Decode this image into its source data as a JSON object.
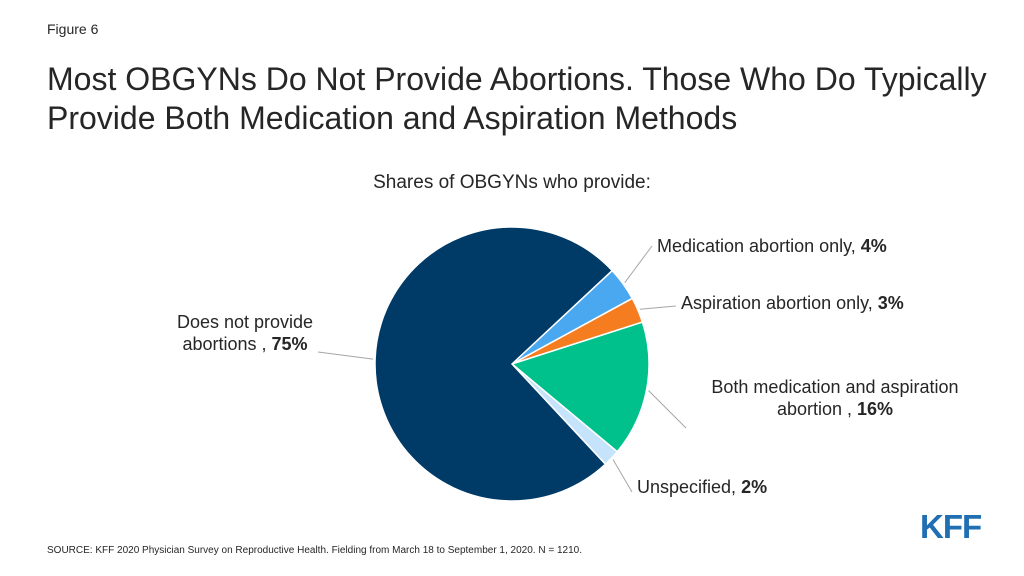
{
  "figure_label": "Figure 6",
  "title": "Most OBGYNs Do Not Provide Abortions. Those Who Do Typically Provide Both Medication and Aspiration Methods",
  "source": "SOURCE: KFF 2020 Physician Survey on Reproductive Health. Fielding from March 18 to September 1, 2020. N = 1210.",
  "logo_text": "KFF",
  "chart_data": {
    "type": "pie",
    "title": "Shares of OBGYNs who provide:",
    "slices": [
      {
        "label": "Medication abortion only, ",
        "value_label": "4%",
        "value": 4,
        "color": "#4aa8f0"
      },
      {
        "label": "Aspiration abortion only, ",
        "value_label": "3%",
        "value": 3,
        "color": "#f57d20"
      },
      {
        "label": "Both medication and aspiration abortion , ",
        "value_label": "16%",
        "value": 16,
        "color": "#00c08b"
      },
      {
        "label": "Unspecified, ",
        "value_label": "2%",
        "value": 2,
        "color": "#c5e4fb"
      },
      {
        "label": "Does not provide abortions , ",
        "value_label": "75%",
        "value": 75,
        "color": "#003a66"
      }
    ]
  }
}
